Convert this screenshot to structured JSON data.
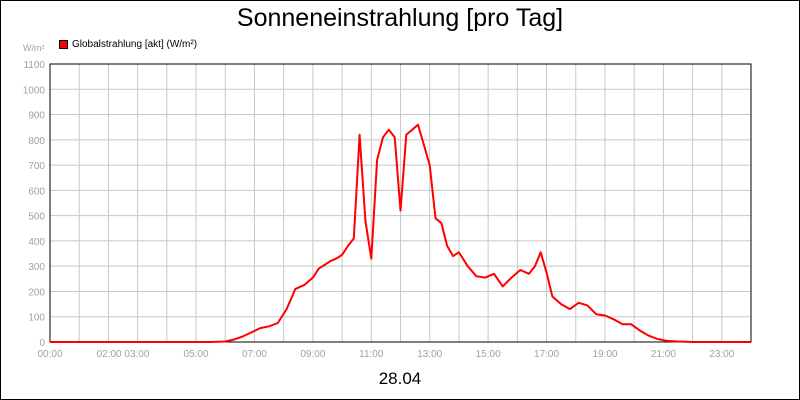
{
  "chart_data": {
    "type": "line",
    "title": "Sonneneinstrahlung [pro Tag]",
    "ylabel": "W/m²",
    "xlabel": "28.04",
    "ylim": [
      0,
      1100
    ],
    "yticks": [
      0,
      100,
      200,
      300,
      400,
      500,
      600,
      700,
      800,
      900,
      1000,
      1100
    ],
    "xlim": [
      0,
      24
    ],
    "xtick_labels": [
      "00:00",
      "02:00 03:00",
      "05:00",
      "07:00",
      "09:00",
      "11:00",
      "13:00",
      "15:00",
      "17:00",
      "19:00",
      "21:00",
      "23:00"
    ],
    "grid": true,
    "legend_position": "top-left",
    "series": [
      {
        "name": "Globalstrahlung [akt] (W/m²)",
        "color": "#ff0000",
        "x": [
          0,
          5.5,
          6.0,
          6.3,
          6.6,
          6.9,
          7.2,
          7.5,
          7.8,
          8.1,
          8.4,
          8.7,
          9.0,
          9.2,
          9.4,
          9.6,
          9.8,
          10.0,
          10.2,
          10.4,
          10.6,
          10.8,
          11.0,
          11.2,
          11.4,
          11.6,
          11.8,
          12.0,
          12.2,
          12.4,
          12.6,
          12.8,
          13.0,
          13.2,
          13.4,
          13.6,
          13.8,
          14.0,
          14.3,
          14.6,
          14.9,
          15.2,
          15.5,
          15.8,
          16.1,
          16.4,
          16.6,
          16.8,
          17.0,
          17.2,
          17.5,
          17.8,
          18.1,
          18.4,
          18.7,
          19.0,
          19.3,
          19.6,
          19.9,
          20.2,
          20.5,
          20.8,
          21.1,
          21.5,
          22.0,
          24.0
        ],
        "values": [
          0,
          0,
          2,
          10,
          22,
          38,
          55,
          62,
          75,
          130,
          210,
          225,
          255,
          290,
          305,
          320,
          330,
          345,
          380,
          410,
          820,
          480,
          330,
          720,
          810,
          840,
          810,
          520,
          820,
          840,
          860,
          780,
          700,
          490,
          470,
          380,
          340,
          355,
          300,
          260,
          255,
          270,
          220,
          255,
          285,
          270,
          300,
          355,
          275,
          180,
          150,
          130,
          155,
          145,
          110,
          105,
          90,
          70,
          70,
          45,
          25,
          12,
          5,
          2,
          0,
          0
        ]
      }
    ]
  }
}
